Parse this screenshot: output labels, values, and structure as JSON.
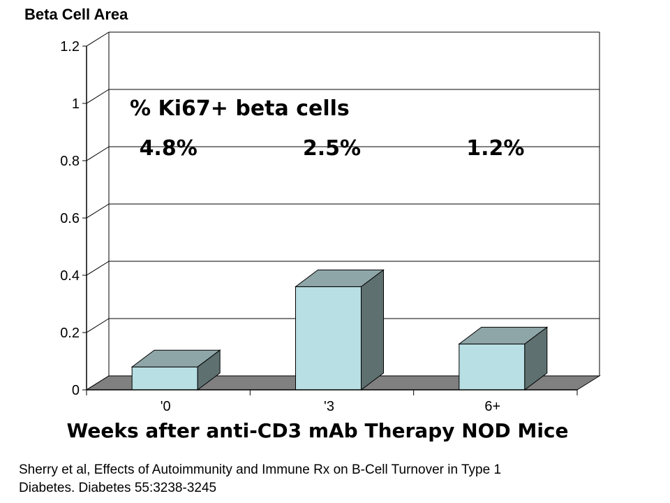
{
  "chart_data": {
    "type": "bar",
    "title": "Beta Cell Area",
    "xlabel": "Weeks after anti-CD3 mAb Therapy NOD Mice",
    "ylabel": "",
    "categories": [
      "'0",
      "'3",
      "6+"
    ],
    "values": [
      0.08,
      0.36,
      0.16
    ],
    "ylim": [
      0,
      1.2
    ],
    "yticks": [
      0,
      0.2,
      0.4,
      0.6,
      0.8,
      1,
      1.2
    ],
    "ytick_labels": [
      "0",
      "0.2",
      "0.4",
      "0.6",
      "0.8",
      "1",
      "1.2"
    ],
    "grid": true,
    "style": "3d",
    "annotations": {
      "heading": "% Ki67+ beta cells",
      "values": [
        "4.8%",
        "2.5%",
        "1.2%"
      ]
    },
    "colors": {
      "bar_front": "#b8dfe3",
      "bar_top": "#8fa6a8",
      "bar_side": "#5e7070",
      "floor": "#808080"
    }
  },
  "citation": {
    "line1": "Sherry et al, Effects of Autoimmunity and Immune Rx on B-Cell Turnover in Type 1",
    "line2": "Diabetes.  Diabetes  55:3238-3245"
  }
}
